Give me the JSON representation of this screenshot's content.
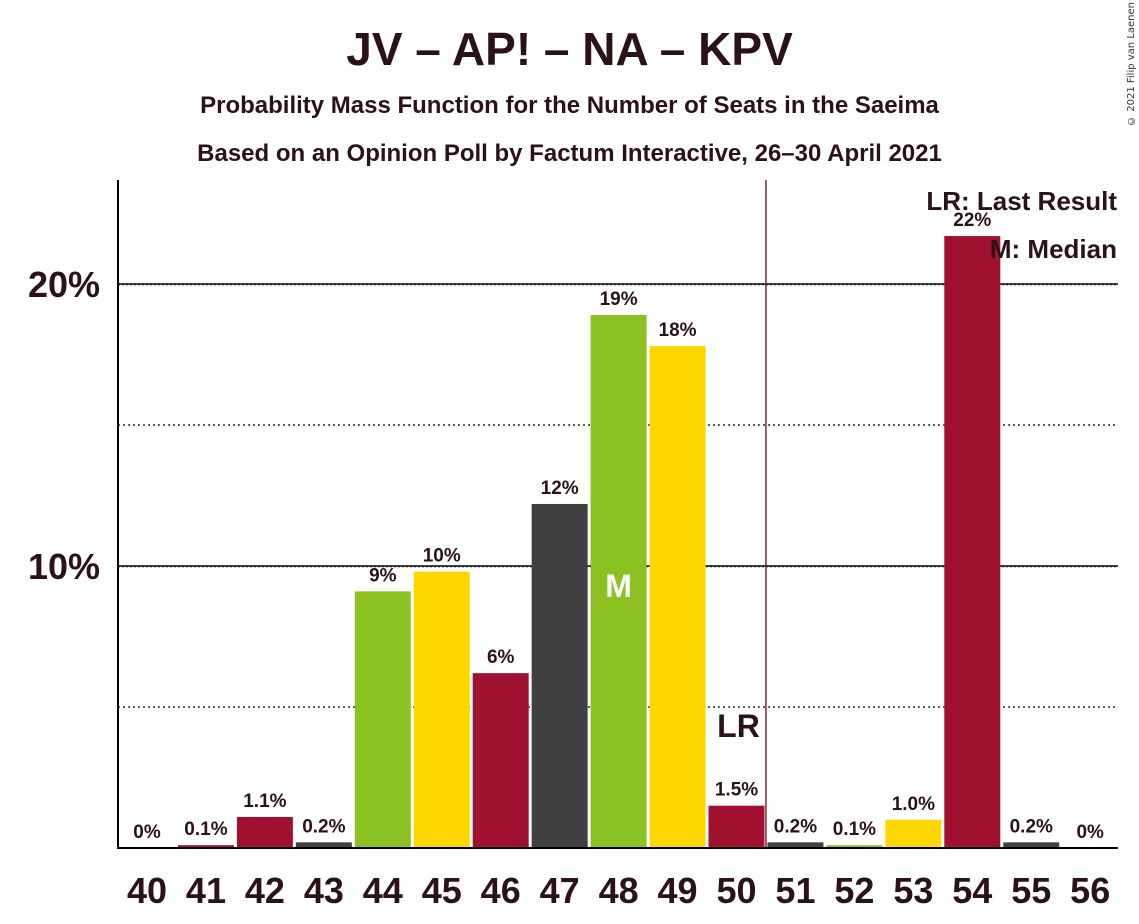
{
  "title": "JV – AP! – NA – KPV",
  "subtitle": "Probability Mass Function for the Number of Seats in the Saeima",
  "subtitle2": "Based on an Opinion Poll by Factum Interactive, 26–30 April 2021",
  "copyright": "© 2021 Filip van Laenen",
  "legend": {
    "lr": "LR: Last Result",
    "m": "M: Median"
  },
  "colors": {
    "crimson": "#A0112F",
    "green": "#8BC120",
    "yellow": "#FFD700",
    "dark": "#404040",
    "text": "#2b1216"
  },
  "chart_data": {
    "type": "bar",
    "categories": [
      "40",
      "41",
      "42",
      "43",
      "44",
      "45",
      "46",
      "47",
      "48",
      "49",
      "50",
      "51",
      "52",
      "53",
      "54",
      "55",
      "56"
    ],
    "values": [
      0,
      0.1,
      1.1,
      0.2,
      9.1,
      9.8,
      6.2,
      12.2,
      18.9,
      17.8,
      1.5,
      0.2,
      0.1,
      1.0,
      21.7,
      0.2,
      0
    ],
    "labels": [
      "0%",
      "0.1%",
      "1.1%",
      "0.2%",
      "9%",
      "10%",
      "6%",
      "12%",
      "19%",
      "18%",
      "1.5%",
      "0.2%",
      "0.1%",
      "1.0%",
      "22%",
      "0.2%",
      "0%"
    ],
    "colors": [
      "crimson",
      "crimson",
      "crimson",
      "dark",
      "green",
      "yellow",
      "crimson",
      "dark",
      "green",
      "yellow",
      "crimson",
      "dark",
      "green",
      "yellow",
      "crimson",
      "dark",
      "crimson"
    ],
    "yticks": [
      {
        "value": 10,
        "label": "10%"
      },
      {
        "value": 20,
        "label": "20%"
      }
    ],
    "ylim": [
      0,
      23.6
    ],
    "median_category": "48",
    "median_label": "M",
    "last_result_category": "50",
    "last_result_label": "LR",
    "grid": "solid at labelled ticks, dotted at 5% steps between"
  }
}
